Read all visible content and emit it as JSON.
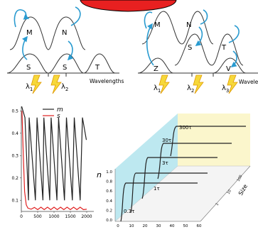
{
  "colors": {
    "state_red": "#e82020",
    "curve": "#333333",
    "arrow": "#2a9bd0",
    "bolt_fill": "#f6d83a",
    "bolt_stroke": "#e09a00",
    "series_m": "#222222",
    "series_s": "#e02020",
    "wall_blue": "#bde8f0",
    "wall_yellow": "#fbf6cc"
  },
  "panel_a": {
    "levels": {
      "M": "M",
      "N": "N",
      "S1": "S",
      "S2": "S",
      "T": "T"
    },
    "lambda1": "λ",
    "lambda1_sub": "1",
    "lambda2": "λ",
    "lambda2_sub": "2",
    "axis_label": "Wavelengths"
  },
  "panel_b": {
    "levels": {
      "M": "M",
      "N": "N",
      "S": "S",
      "T": "T",
      "Z": "Z",
      "V": "V"
    },
    "lambda1": "λ",
    "lambda1_sub": "1",
    "lambda2": "λ",
    "lambda2_sub": "2",
    "lambda3": "λ",
    "lambda3_sub": "3",
    "axis_label": "Wavelengths"
  },
  "panel_c": {
    "legend_m": "m",
    "legend_s": "s",
    "x_ticks": [
      "0",
      "500",
      "1000",
      "1500",
      "2000"
    ],
    "y_ticks": [
      "0.1",
      "0.2",
      "0.3",
      "0.4",
      "0.5"
    ],
    "chart_data": {
      "type": "line",
      "xlim": [
        0,
        2000
      ],
      "ylim": [
        0.05,
        0.52
      ],
      "series": [
        {
          "name": "m",
          "x": [
            10,
            110,
            220,
            240,
            430,
            480,
            660,
            690,
            870,
            910,
            1090,
            1140,
            1320,
            1380,
            1560,
            1620,
            1800,
            1870,
            1990
          ],
          "y": [
            0.52,
            0.47,
            0.1,
            0.47,
            0.1,
            0.47,
            0.1,
            0.47,
            0.1,
            0.47,
            0.1,
            0.47,
            0.1,
            0.47,
            0.1,
            0.47,
            0.1,
            0.47,
            0.37
          ]
        },
        {
          "name": "s",
          "x": [
            20,
            60,
            100,
            150,
            200,
            300,
            400,
            500,
            600,
            700,
            800,
            900,
            1000,
            1100,
            1200,
            1300,
            1400,
            1500,
            1600,
            1700,
            1800,
            1900,
            2000
          ],
          "y": [
            0.5,
            0.3,
            0.14,
            0.08,
            0.065,
            0.06,
            0.068,
            0.058,
            0.069,
            0.058,
            0.069,
            0.058,
            0.069,
            0.058,
            0.069,
            0.058,
            0.069,
            0.058,
            0.069,
            0.058,
            0.069,
            0.058,
            0.06
          ]
        }
      ]
    }
  },
  "panel_d": {
    "y_axis_label": "n",
    "y_ticks": [
      "0.0",
      "0.2",
      "0.4",
      "0.6",
      "0.8",
      "1.0"
    ],
    "x_ticks": [
      "0",
      "10",
      "20",
      "30",
      "40",
      "50",
      "60"
    ],
    "size_label": "Size",
    "size_ticks": [
      "100",
      "10",
      "1"
    ],
    "curve_labels": [
      "0.3τ",
      "1τ",
      "3τ",
      "30τ",
      "300τ"
    ]
  }
}
